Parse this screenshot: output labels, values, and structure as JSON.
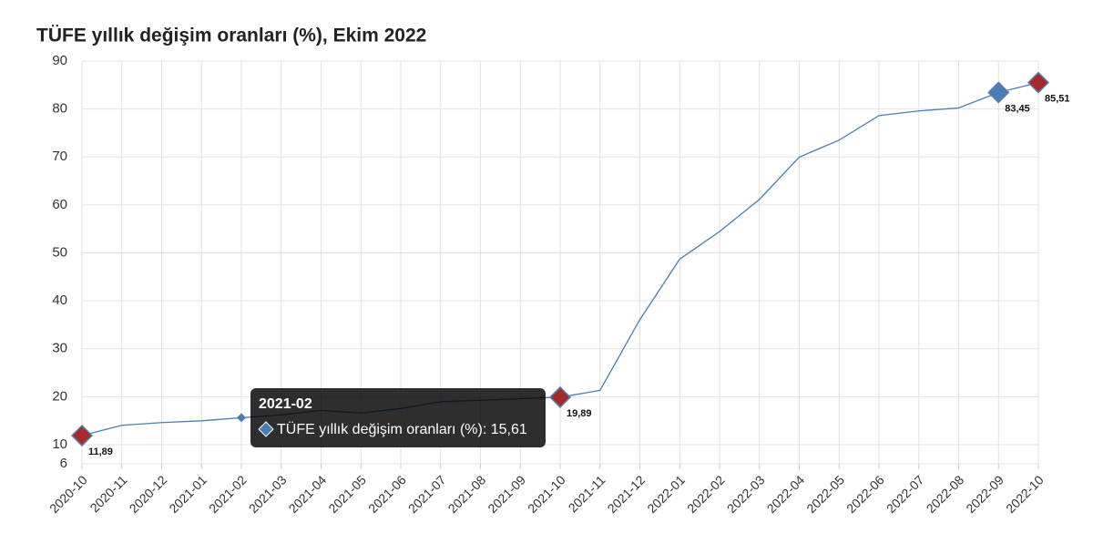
{
  "chart_data": {
    "type": "line",
    "title": "TÜFE yıllık değişim oranları (%), Ekim 2022",
    "categories": [
      "2020-10",
      "2020-11",
      "2020-12",
      "2021-01",
      "2021-02",
      "2021-03",
      "2021-04",
      "2021-05",
      "2021-06",
      "2021-07",
      "2021-08",
      "2021-09",
      "2021-10",
      "2021-11",
      "2021-12",
      "2022-01",
      "2022-02",
      "2022-03",
      "2022-04",
      "2022-05",
      "2022-06",
      "2022-07",
      "2022-08",
      "2022-09",
      "2022-10"
    ],
    "series": [
      {
        "name": "TÜFE yıllık değişim oranları (%)",
        "color": "#4a7db3",
        "values": [
          11.89,
          14.03,
          14.6,
          14.97,
          15.61,
          16.19,
          17.14,
          16.59,
          17.53,
          18.95,
          19.25,
          19.58,
          19.89,
          21.31,
          36.08,
          48.69,
          54.44,
          61.14,
          69.97,
          73.5,
          78.62,
          79.6,
          80.21,
          83.45,
          85.51
        ],
        "value_labels": [
          "11,89",
          null,
          null,
          null,
          null,
          null,
          null,
          null,
          null,
          null,
          null,
          null,
          "19,89",
          null,
          null,
          null,
          null,
          null,
          null,
          null,
          null,
          null,
          null,
          "83,45",
          "85,51"
        ],
        "marker_colors": [
          "#a52a2a",
          null,
          null,
          null,
          "#4a7db3",
          null,
          null,
          null,
          null,
          null,
          null,
          null,
          "#a52a2a",
          null,
          null,
          null,
          null,
          null,
          null,
          null,
          null,
          null,
          null,
          "#4a7db3",
          "#a52a2a"
        ]
      }
    ],
    "ylim": [
      6,
      90
    ],
    "yticks": [
      6,
      10,
      20,
      30,
      40,
      50,
      60,
      70,
      80,
      90
    ],
    "grid": true,
    "tooltip": {
      "title": "2021-02",
      "text": "TÜFE yıllık değişim oranları (%): 15,61",
      "color": "#4a7db3"
    }
  }
}
